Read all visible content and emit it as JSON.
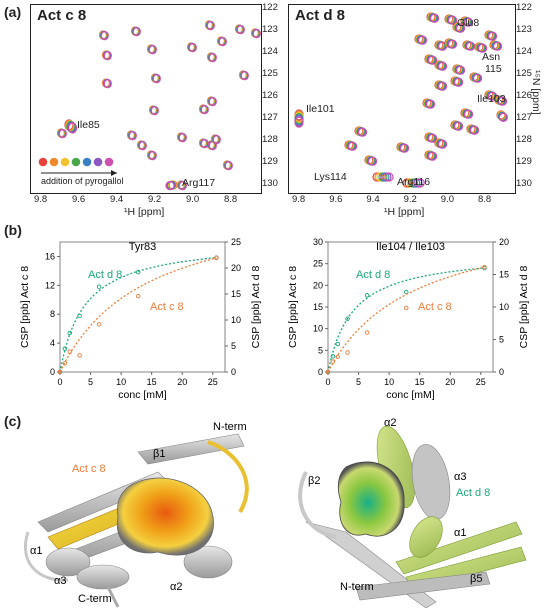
{
  "panel_a": {
    "letter": "(a)",
    "x_unit": "¹H [ppm]",
    "y_unit": "¹⁵N [ppm]",
    "left": {
      "title": "Act c 8",
      "peaks": [
        "Ile85",
        "Arg117"
      ],
      "legend_text": "addition of pyrogallol",
      "x_ticks": [
        "9.8",
        "9.6",
        "9.4",
        "9.2",
        "9.0",
        "8.8"
      ],
      "y_ticks": [
        "122",
        "123",
        "124",
        "125",
        "126",
        "127",
        "128",
        "129",
        "130"
      ]
    },
    "right": {
      "title": "Act d 8",
      "peaks": [
        "Glu8",
        "Asn",
        "115",
        "Ile103",
        "Ile101",
        "Lys114",
        "Arg116"
      ],
      "x_ticks": [
        "9.8",
        "9.6",
        "9.4",
        "9.2",
        "9.0",
        "8.8"
      ],
      "y_ticks": [
        "122",
        "123",
        "124",
        "125",
        "126",
        "127",
        "128",
        "129",
        "130"
      ]
    },
    "titration_colors": [
      "#e8413a",
      "#f08a2c",
      "#f2c230",
      "#4aa84a",
      "#3a7fc0",
      "#8a58c0",
      "#d050b0"
    ]
  },
  "panel_b": {
    "letter": "(b)",
    "colors": {
      "act_d8": "#1aa87a",
      "act_c8": "#f07c3a"
    }
  },
  "chart_data": [
    {
      "type": "scatter",
      "title": "Tyr83",
      "xlabel": "conc [mM]",
      "ylabel": "CSP [ppb] Act c 8",
      "ylabel_right": "CSP [ppb] Act d 8",
      "xlim": [
        0,
        27
      ],
      "ylim": [
        0,
        18
      ],
      "ylim_right": [
        0,
        25
      ],
      "x_ticks": [
        0,
        5,
        10,
        15,
        20,
        25
      ],
      "y_ticks": [
        0,
        4,
        8,
        12,
        16
      ],
      "y_ticks_right": [
        0,
        5,
        10,
        15,
        20,
        25
      ],
      "series": [
        {
          "name": "Act d 8",
          "axis": "right",
          "x": [
            0,
            0.8,
            1.6,
            3.2,
            6.4,
            12.8,
            25.6
          ],
          "y": [
            0,
            4.5,
            7.5,
            10.8,
            16.4,
            19.2,
            22
          ]
        },
        {
          "name": "Act c 8",
          "axis": "left",
          "x": [
            0,
            0.8,
            1.6,
            3.2,
            6.4,
            12.8,
            25.6
          ],
          "y": [
            0,
            1.2,
            2.8,
            2.3,
            6.6,
            10.5,
            15.8
          ]
        }
      ]
    },
    {
      "type": "scatter",
      "title": "Ile104 / Ile103",
      "xlabel": "conc [mM]",
      "ylabel": "CSP [ppb] Act c 8",
      "ylabel_right": "CSP [ppb] Act d 8",
      "xlim": [
        0,
        27
      ],
      "ylim": [
        0,
        30
      ],
      "ylim_right": [
        0,
        20
      ],
      "x_ticks": [
        0,
        5,
        10,
        15,
        20,
        25
      ],
      "y_ticks": [
        0,
        5,
        10,
        15,
        20,
        25,
        30
      ],
      "y_ticks_right": [
        0,
        5,
        10,
        15,
        20
      ],
      "series": [
        {
          "name": "Act d 8",
          "axis": "right",
          "x": [
            0,
            0.8,
            1.6,
            3.2,
            6.4,
            12.8,
            25.6
          ],
          "y": [
            0,
            2.4,
            4.3,
            8.2,
            11.8,
            12.3,
            16
          ]
        },
        {
          "name": "Act c 8",
          "axis": "left",
          "x": [
            0,
            0.8,
            1.6,
            3.2,
            6.4,
            12.8,
            25.6
          ],
          "y": [
            0,
            2.4,
            3.5,
            4.5,
            9.1,
            14.8,
            24.2
          ]
        }
      ]
    }
  ],
  "panel_c": {
    "letter": "(c)",
    "left_labels": [
      "N-term",
      "β1",
      "Act c 8",
      "α1",
      "α3",
      "C-term",
      "α2"
    ],
    "right_labels": [
      "α2",
      "α3",
      "β2",
      "Act d 8",
      "α1",
      "N-term",
      "β5"
    ]
  }
}
